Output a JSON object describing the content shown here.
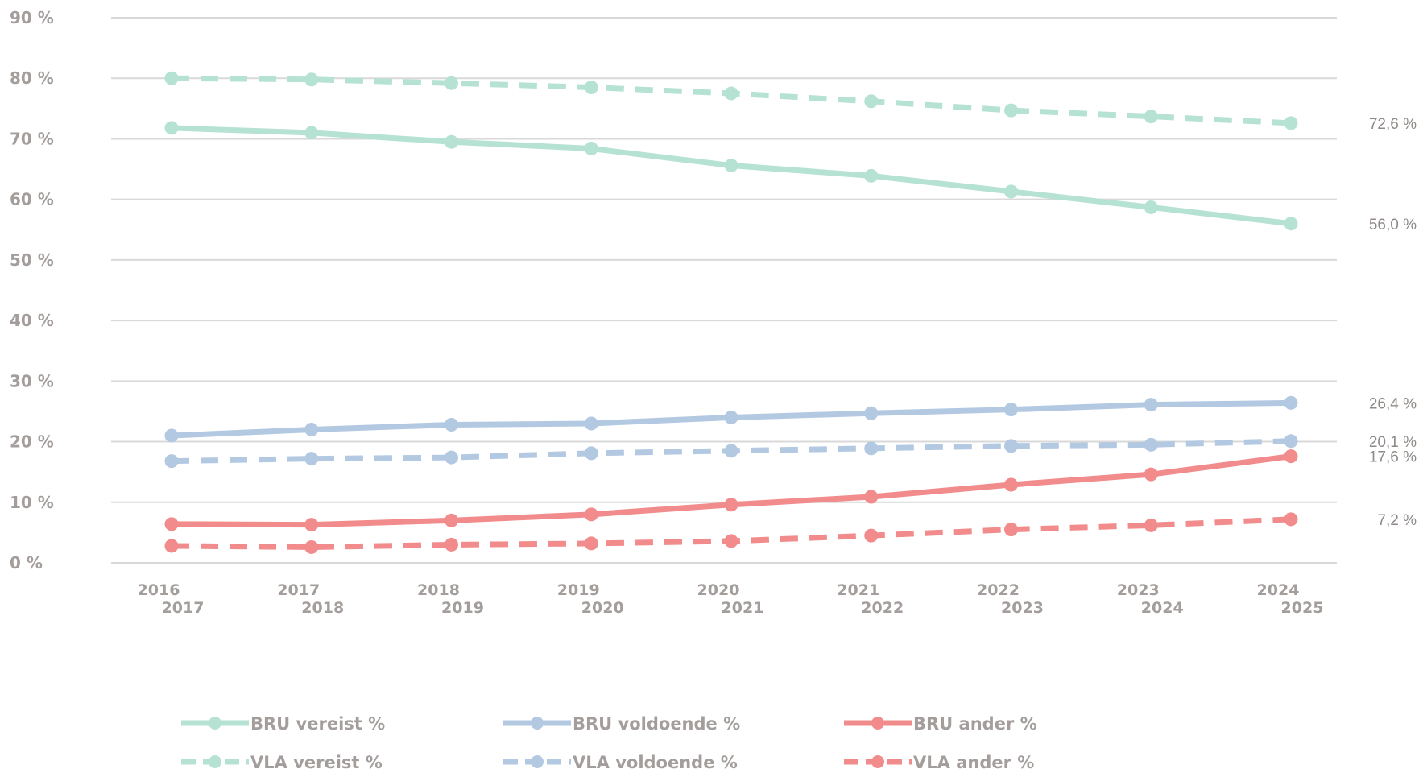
{
  "chart_data": {
    "type": "line",
    "categories": [
      [
        "2016",
        "2017"
      ],
      [
        "2017",
        "2018"
      ],
      [
        "2018",
        "2019"
      ],
      [
        "2019",
        "2020"
      ],
      [
        "2020",
        "2021"
      ],
      [
        "2021",
        "2022"
      ],
      [
        "2022",
        "2023"
      ],
      [
        "2023",
        "2024"
      ],
      [
        "2024",
        "2025"
      ]
    ],
    "y_ticks": [
      "0 %",
      "10 %",
      "20 %",
      "30 %",
      "40 %",
      "50 %",
      "60 %",
      "70 %",
      "80 %",
      "90 %"
    ],
    "ylim": [
      0,
      90
    ],
    "grid": true,
    "legend_position": "bottom",
    "series": [
      {
        "name": "BRU vereist %",
        "color": "#b6e2d3",
        "dashed": false,
        "values": [
          71.8,
          71.0,
          69.5,
          68.4,
          65.6,
          63.9,
          61.3,
          58.7,
          56.0
        ],
        "end_label": "56,0 %"
      },
      {
        "name": "VLA vereist %",
        "color": "#b6e2d3",
        "dashed": true,
        "values": [
          80.0,
          79.8,
          79.2,
          78.5,
          77.5,
          76.2,
          74.7,
          73.7,
          72.6
        ],
        "end_label": "72,6 %"
      },
      {
        "name": "BRU voldoende  %",
        "color": "#b3c9e2",
        "dashed": false,
        "values": [
          21.0,
          22.0,
          22.8,
          23.0,
          24.0,
          24.7,
          25.3,
          26.1,
          26.4
        ],
        "end_label": "26,4 %"
      },
      {
        "name": "VLA voldoende  %",
        "color": "#b3c9e2",
        "dashed": true,
        "values": [
          16.8,
          17.2,
          17.4,
          18.1,
          18.5,
          18.9,
          19.3,
          19.5,
          20.1
        ],
        "end_label": "20,1 %"
      },
      {
        "name": "BRU ander  %",
        "color": "#f28b8b",
        "dashed": false,
        "values": [
          6.4,
          6.3,
          7.0,
          8.0,
          9.6,
          10.9,
          12.9,
          14.6,
          17.6
        ],
        "end_label": "17,6 %"
      },
      {
        "name": "VLA ander  %",
        "color": "#f28b8b",
        "dashed": true,
        "values": [
          2.8,
          2.6,
          3.0,
          3.2,
          3.6,
          4.5,
          5.5,
          6.2,
          7.2
        ],
        "end_label": "7,2 %"
      }
    ]
  }
}
